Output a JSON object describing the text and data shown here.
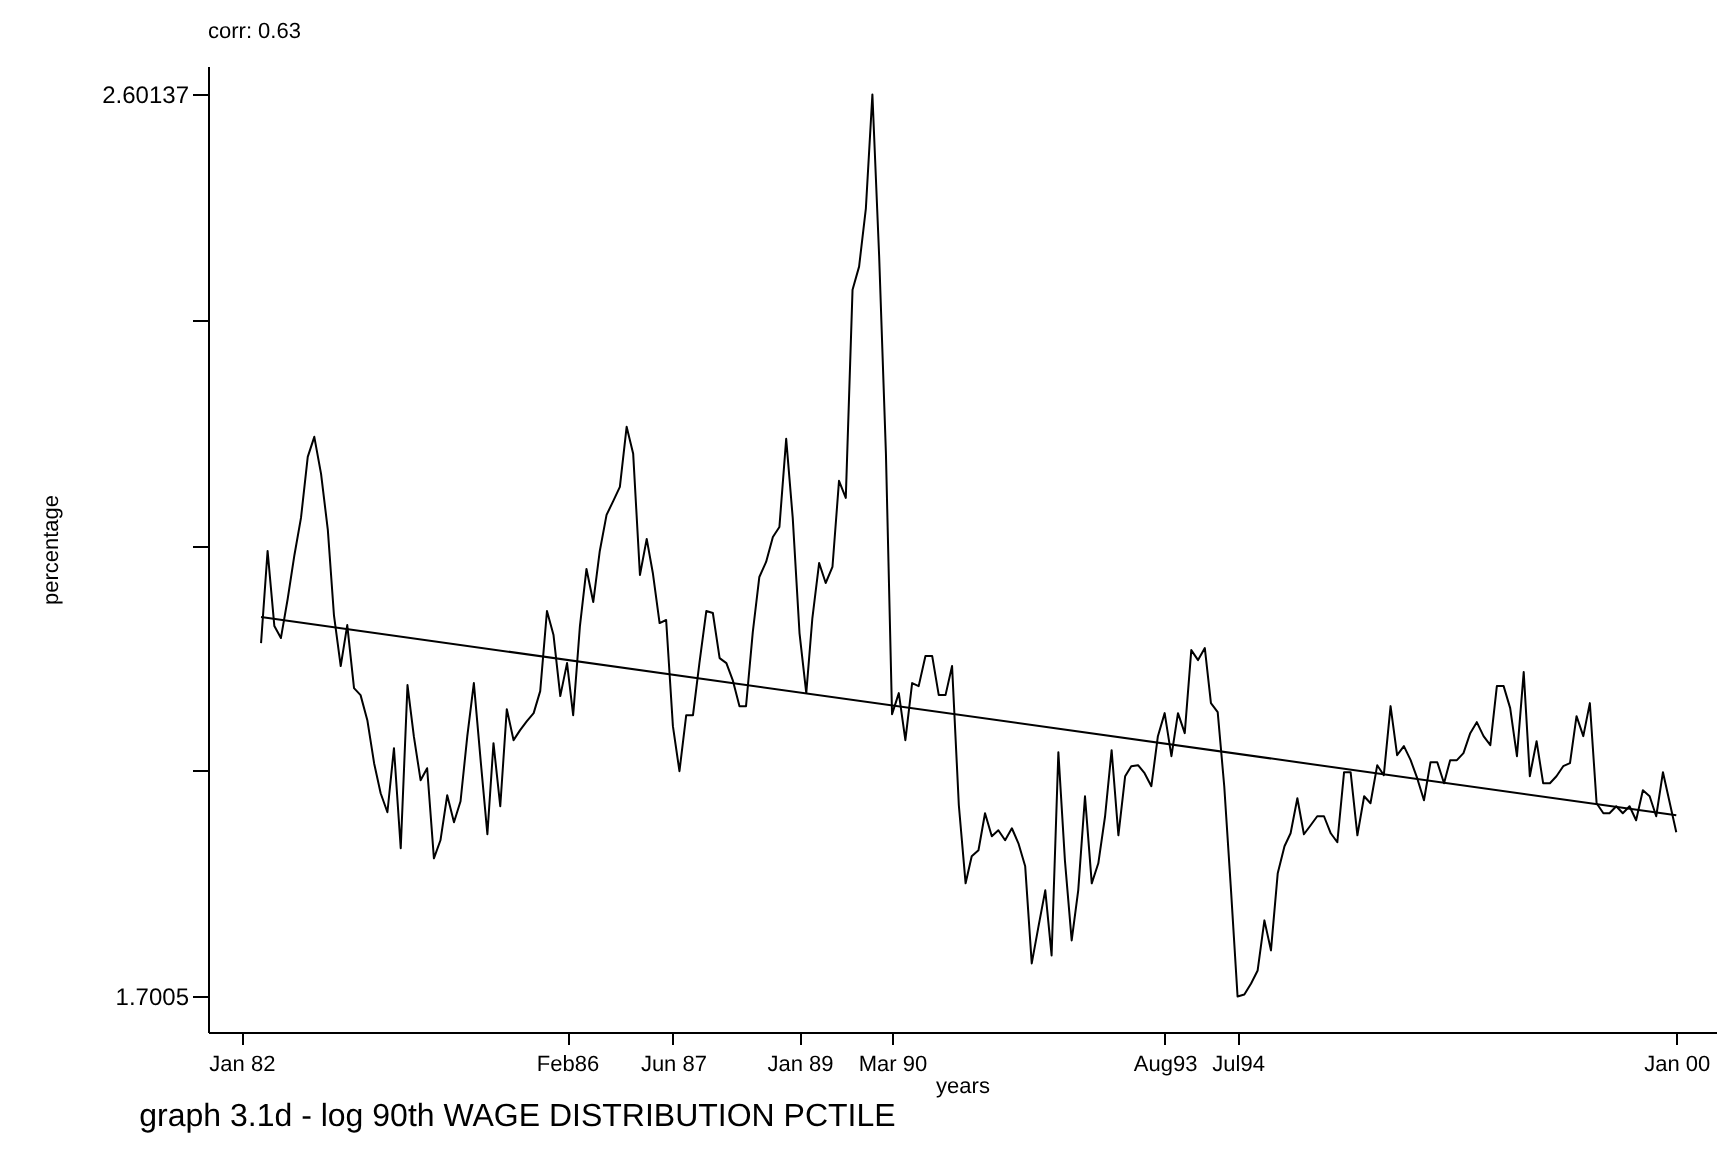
{
  "chart_data": {
    "type": "line",
    "title": "graph 3.1d - log 90th WAGE DISTRIBUTION PCTILE",
    "xlabel": "years",
    "ylabel": "percentage",
    "annotations": [
      "corr: 0.63"
    ],
    "xlim": [
      "1981-08",
      "2000-07"
    ],
    "ylim": [
      1.6645,
      2.6294
    ],
    "xticks": [
      {
        "value": "1982-01",
        "label": "Jan 82"
      },
      {
        "value": "1986-02",
        "label": "Feb86"
      },
      {
        "value": "1987-06",
        "label": "Jun 87"
      },
      {
        "value": "1989-01",
        "label": "Jan 89"
      },
      {
        "value": "1990-03",
        "label": "Mar 90"
      },
      {
        "value": "1993-08",
        "label": "Aug93"
      },
      {
        "value": "1994-07",
        "label": "Jul94"
      },
      {
        "value": "2000-01",
        "label": "Jan 00"
      }
    ],
    "yticks": [
      1.7005,
      {
        "value": 1.9257,
        "label": null
      },
      {
        "value": 2.1509,
        "label": null
      },
      {
        "value": 2.3762,
        "label": null
      },
      2.60137
    ],
    "grid": false,
    "line_style": "solid",
    "series": [
      {
        "color": "#000000",
        "x": [
          "1982-04",
          "1982-05",
          "1982-06",
          "1982-07",
          "1982-08",
          "1982-09",
          "1982-10",
          "1982-11",
          "1982-12",
          "1983-01",
          "1983-02",
          "1983-03",
          "1983-04",
          "1983-05",
          "1983-06",
          "1983-07",
          "1983-08",
          "1983-09",
          "1983-10",
          "1983-11",
          "1983-12",
          "1984-01",
          "1984-02",
          "1984-03",
          "1984-04",
          "1984-05",
          "1984-06",
          "1984-07",
          "1984-08",
          "1984-09",
          "1984-10",
          "1984-11",
          "1984-12",
          "1985-01",
          "1985-02",
          "1985-03",
          "1985-04",
          "1985-05",
          "1985-06",
          "1985-07",
          "1985-08",
          "1985-09",
          "1985-10",
          "1985-11",
          "1985-12",
          "1986-01",
          "1986-02",
          "1986-03",
          "1986-04",
          "1986-05",
          "1986-06",
          "1986-07",
          "1986-08",
          "1986-09",
          "1986-10",
          "1986-11",
          "1986-12",
          "1987-01",
          "1987-02",
          "1987-03",
          "1987-04",
          "1987-05",
          "1987-06",
          "1987-07",
          "1987-08",
          "1987-09",
          "1987-10",
          "1987-11",
          "1987-12",
          "1988-01",
          "1988-02",
          "1988-03",
          "1988-04",
          "1988-05",
          "1988-06",
          "1988-07",
          "1988-08",
          "1988-09",
          "1988-10",
          "1988-11",
          "1988-12",
          "1989-01",
          "1989-02",
          "1989-03",
          "1989-04",
          "1989-05",
          "1989-06",
          "1989-07",
          "1989-08",
          "1989-09",
          "1989-10",
          "1989-11",
          "1989-12",
          "1990-01",
          "1990-02",
          "1990-03",
          "1990-04",
          "1990-05",
          "1990-06",
          "1990-07",
          "1990-08",
          "1990-09",
          "1990-10",
          "1990-11",
          "1990-12",
          "1991-01",
          "1991-02",
          "1991-03",
          "1991-04",
          "1991-05",
          "1991-06",
          "1991-07",
          "1991-08",
          "1991-09",
          "1991-10",
          "1991-11",
          "1991-12",
          "1992-01",
          "1992-02",
          "1992-03",
          "1992-04",
          "1992-05",
          "1992-06",
          "1992-07",
          "1992-08",
          "1992-09",
          "1992-10",
          "1992-11",
          "1992-12",
          "1993-01",
          "1993-02",
          "1993-03",
          "1993-04",
          "1993-05",
          "1993-06",
          "1993-07",
          "1993-08",
          "1993-09",
          "1993-10",
          "1993-11",
          "1993-12",
          "1994-01",
          "1994-02",
          "1994-03",
          "1994-04",
          "1994-05",
          "1994-06",
          "1994-07",
          "1994-08",
          "1994-09",
          "1994-10",
          "1994-11",
          "1994-12",
          "1995-01",
          "1995-02",
          "1995-03",
          "1995-04",
          "1995-05",
          "1995-06",
          "1995-07",
          "1995-08",
          "1995-09",
          "1995-10",
          "1995-11",
          "1995-12",
          "1996-01",
          "1996-02",
          "1996-03",
          "1996-04",
          "1996-05",
          "1996-06",
          "1996-07",
          "1996-08",
          "1996-09",
          "1996-10",
          "1996-11",
          "1996-12",
          "1997-01",
          "1997-02",
          "1997-03",
          "1997-04",
          "1997-05",
          "1997-06",
          "1997-07",
          "1997-08",
          "1997-09",
          "1997-10",
          "1997-11",
          "1997-12",
          "1998-01",
          "1998-02",
          "1998-03",
          "1998-04",
          "1998-05",
          "1998-06",
          "1998-07",
          "1998-08",
          "1998-09",
          "1998-10",
          "1998-11",
          "1998-12",
          "1999-01",
          "1999-02",
          "1999-03",
          "1999-04",
          "1999-05",
          "1999-06",
          "1999-07",
          "1999-08",
          "1999-09",
          "1999-10",
          "1999-11",
          "2000-01"
        ],
        "values": [
          2.053,
          2.145,
          2.07,
          2.058,
          2.097,
          2.141,
          2.178,
          2.239,
          2.259,
          2.222,
          2.166,
          2.081,
          2.03,
          2.071,
          2.008,
          2.001,
          1.976,
          1.933,
          1.903,
          1.884,
          1.948,
          1.848,
          2.011,
          1.96,
          1.916,
          1.928,
          1.838,
          1.856,
          1.901,
          1.874,
          1.895,
          1.96,
          2.013,
          1.936,
          1.862,
          1.953,
          1.89,
          1.987,
          1.956,
          1.966,
          1.975,
          1.983,
          2.005,
          2.085,
          2.061,
          2.0,
          2.033,
          1.981,
          2.07,
          2.127,
          2.094,
          2.145,
          2.181,
          2.195,
          2.209,
          2.269,
          2.242,
          2.121,
          2.157,
          2.123,
          2.073,
          2.076,
          1.97,
          1.925,
          1.981,
          1.981,
          2.034,
          2.085,
          2.083,
          2.038,
          2.033,
          2.016,
          1.99,
          1.99,
          2.064,
          2.119,
          2.134,
          2.159,
          2.169,
          2.257,
          2.178,
          2.063,
          2.003,
          2.078,
          2.133,
          2.113,
          2.129,
          2.215,
          2.198,
          2.406,
          2.429,
          2.487,
          2.601,
          2.439,
          2.242,
          1.982,
          2.003,
          1.956,
          2.013,
          2.01,
          2.04,
          2.04,
          2.001,
          2.001,
          2.03,
          1.891,
          1.813,
          1.84,
          1.846,
          1.883,
          1.86,
          1.866,
          1.856,
          1.868,
          1.853,
          1.83,
          1.733,
          1.77,
          1.806,
          1.741,
          1.944,
          1.836,
          1.756,
          1.806,
          1.9,
          1.813,
          1.833,
          1.88,
          1.946,
          1.861,
          1.92,
          1.93,
          1.931,
          1.923,
          1.91,
          1.96,
          1.983,
          1.94,
          1.983,
          1.963,
          2.046,
          2.036,
          2.048,
          1.993,
          1.984,
          1.91,
          1.806,
          1.7,
          1.702,
          1.713,
          1.726,
          1.776,
          1.746,
          1.823,
          1.85,
          1.863,
          1.898,
          1.862,
          1.871,
          1.88,
          1.88,
          1.863,
          1.854,
          1.924,
          1.924,
          1.861,
          1.9,
          1.893,
          1.931,
          1.921,
          1.99,
          1.941,
          1.95,
          1.936,
          1.918,
          1.896,
          1.934,
          1.934,
          1.913,
          1.936,
          1.936,
          1.943,
          1.963,
          1.974,
          1.96,
          1.951,
          2.01,
          2.01,
          1.988,
          1.94,
          2.024,
          1.92,
          1.955,
          1.913,
          1.913,
          1.92,
          1.93,
          1.933,
          1.98,
          1.96,
          1.993,
          1.893,
          1.883,
          1.883,
          1.89,
          1.883,
          1.89,
          1.876,
          1.906,
          1.9,
          1.88,
          1.924,
          1.864
        ]
      },
      {
        "type": "line",
        "color": "#000000",
        "x": [
          "1982-04",
          "2000-01"
        ],
        "values": [
          2.079,
          1.881
        ]
      }
    ]
  }
}
